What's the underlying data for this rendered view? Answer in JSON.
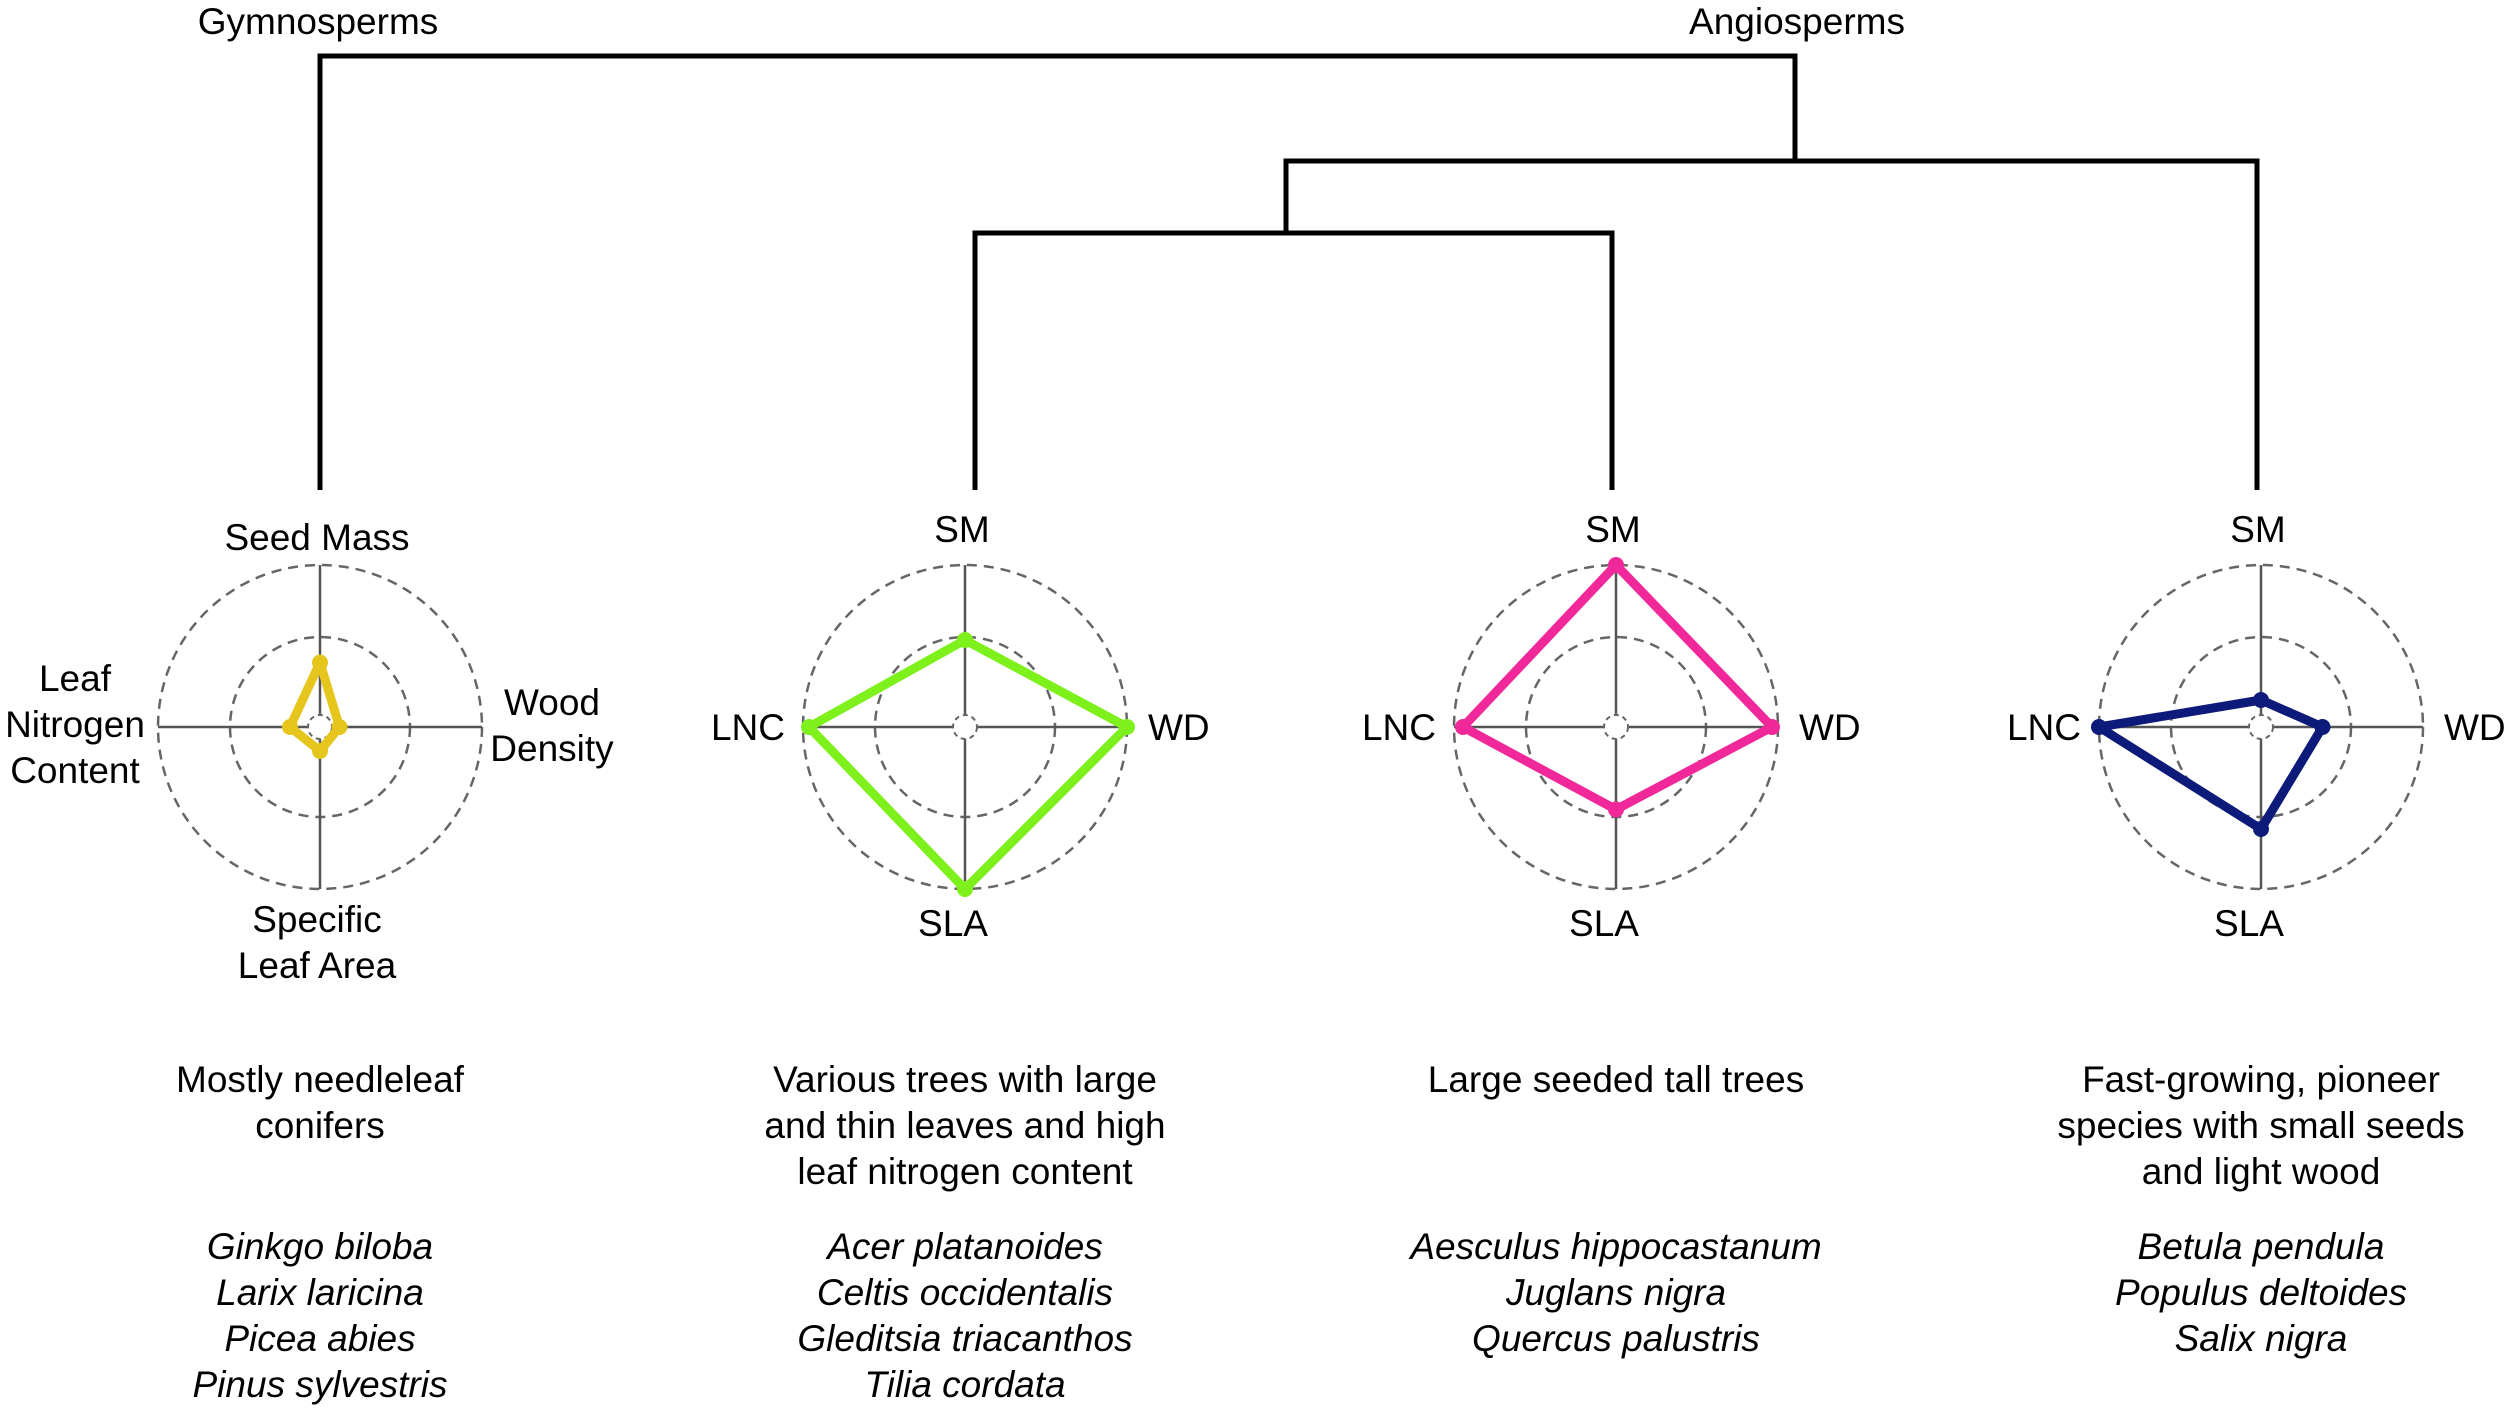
{
  "tree": {
    "clade_left": "Gymnosperms",
    "clade_right": "Angiosperms"
  },
  "groups": [
    {
      "color": "#e6c61c",
      "axis_labels": {
        "top": [
          "Seed Mass"
        ],
        "right": [
          "Wood",
          "Density"
        ],
        "bottom": [
          "Specific",
          "Leaf Area"
        ],
        "left": [
          "Leaf",
          "Nitrogen",
          "Content"
        ]
      },
      "values": {
        "SM": 0.35,
        "WD": 0.05,
        "SLA": 0.08,
        "LNC": 0.12
      },
      "description": [
        "Mostly needleleaf",
        "conifers"
      ],
      "species": [
        "Ginkgo biloba",
        "Larix laricina",
        "Picea abies",
        "Pinus sylvestris"
      ]
    },
    {
      "color": "#7ef01c",
      "axis_labels": {
        "top": [
          "SM"
        ],
        "right": [
          "WD"
        ],
        "bottom": [
          "SLA"
        ],
        "left": [
          "LNC"
        ]
      },
      "values": {
        "SM": 0.5,
        "WD": 1.0,
        "SLA": 1.0,
        "LNC": 0.96
      },
      "description": [
        "Various trees with large",
        "and thin leaves and high",
        "leaf nitrogen content"
      ],
      "species": [
        "Acer platanoides",
        "Celtis occidentalis",
        "Gleditsia triacanthos",
        "Tilia cordata"
      ]
    },
    {
      "color": "#f0289a",
      "axis_labels": {
        "top": [
          "SM"
        ],
        "right": [
          "WD"
        ],
        "bottom": [
          "SLA"
        ],
        "left": [
          "LNC"
        ]
      },
      "values": {
        "SM": 1.0,
        "WD": 0.96,
        "SLA": 0.47,
        "LNC": 0.94
      },
      "description": [
        "Large seeded tall trees"
      ],
      "species": [
        "Aesculus hippocastanum",
        "Juglans nigra",
        "Quercus palustris"
      ]
    },
    {
      "color": "#0c1a7a",
      "axis_labels": {
        "top": [
          "SM"
        ],
        "right": [
          "WD"
        ],
        "bottom": [
          "SLA"
        ],
        "left": [
          "LNC"
        ]
      },
      "values": {
        "SM": 0.1,
        "WD": 0.33,
        "SLA": 0.6,
        "LNC": 1.0
      },
      "description": [
        "Fast-growing, pioneer",
        "species with small seeds",
        "and light wood"
      ],
      "species": [
        "Betula pendula",
        "Populus deltoides",
        "Salix nigra"
      ]
    }
  ]
}
